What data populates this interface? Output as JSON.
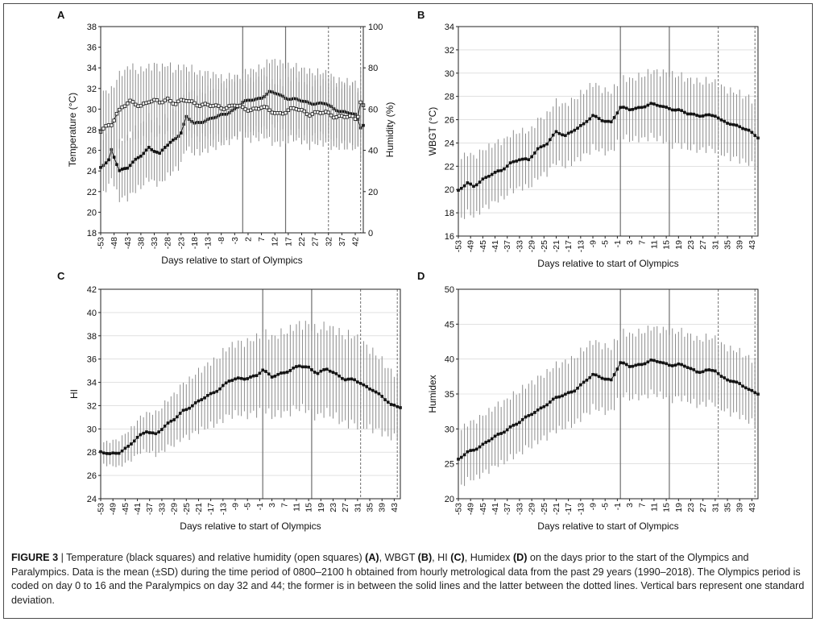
{
  "caption": {
    "label": "FIGURE 3",
    "separator": " | ",
    "p1": "Temperature (black squares) and relative humidity (open squares) ",
    "a": "(A)",
    "p2": ", WBGT ",
    "b": "(B)",
    "p3": ", HI ",
    "c": "(C)",
    "p4": ", Humidex ",
    "d": "(D)",
    "p5": " on the days prior to the start of the Olympics and Paralympics. Data is the mean (±SD) during the time period of 0800–2100 h obtained from hourly metrological data from the past 29 years (1990–2018). The Olympics period is coded on day 0 to 16 and the Paralympics on day 32 and 44; the former is in between the solid lines and the latter between the dotted lines. Vertical bars represent one standard deviation."
  },
  "chart_data": [
    {
      "panel": "A",
      "type": "line",
      "xlabel": "Days relative to start of Olympics",
      "ylabel": "Temperature (°C)",
      "y2label": "Humidity (%)",
      "xlim": [
        -53,
        45
      ],
      "ylim": [
        18,
        38
      ],
      "y2lim": [
        0,
        100
      ],
      "x_ticks": [
        -53,
        -48,
        -43,
        -38,
        -33,
        -28,
        -23,
        -18,
        -13,
        -8,
        -3,
        2,
        7,
        12,
        17,
        22,
        27,
        32,
        37,
        42
      ],
      "y_ticks": [
        18,
        20,
        22,
        24,
        26,
        28,
        30,
        32,
        34,
        36,
        38
      ],
      "y2_ticks": [
        0,
        20,
        40,
        60,
        80,
        100
      ],
      "reference_lines": {
        "solid": [
          0,
          16
        ],
        "dotted": [
          32,
          44
        ]
      },
      "grid": false,
      "series": [
        {
          "marker": "filled-square",
          "axis": "left",
          "anchors": [
            [
              -53,
              24.3
            ],
            [
              -50,
              25.0
            ],
            [
              -49,
              26.0
            ],
            [
              -46,
              24.1
            ],
            [
              -43,
              24.3
            ],
            [
              -38,
              25.5
            ],
            [
              -35,
              26.3
            ],
            [
              -31,
              25.6
            ],
            [
              -29,
              26.3
            ],
            [
              -26,
              27.0
            ],
            [
              -23,
              27.7
            ],
            [
              -21,
              29.2
            ],
            [
              -18,
              28.6
            ],
            [
              -14,
              28.9
            ],
            [
              -10,
              29.2
            ],
            [
              -6,
              29.6
            ],
            [
              -3,
              30.0
            ],
            [
              0,
              30.6
            ],
            [
              3,
              30.9
            ],
            [
              7,
              31.1
            ],
            [
              10,
              31.6
            ],
            [
              13,
              31.5
            ],
            [
              16,
              31.1
            ],
            [
              20,
              30.9
            ],
            [
              25,
              30.6
            ],
            [
              31,
              30.5
            ],
            [
              34,
              30.0
            ],
            [
              40,
              29.6
            ],
            [
              42,
              29.4
            ],
            [
              43,
              28.9
            ],
            [
              44,
              28.2
            ],
            [
              45,
              28.5
            ]
          ],
          "sd_anchors": [
            [
              -53,
              2.5
            ],
            [
              -40,
              3.0
            ],
            [
              -25,
              3.0
            ],
            [
              0,
              2.8
            ],
            [
              16,
              3.2
            ],
            [
              30,
              3.0
            ],
            [
              45,
              3.0
            ]
          ]
        },
        {
          "marker": "open-square",
          "axis": "right",
          "anchors": [
            [
              -53,
              49
            ],
            [
              -51,
              51
            ],
            [
              -49,
              53
            ],
            [
              -47,
              58
            ],
            [
              -45,
              61
            ],
            [
              -42,
              63
            ],
            [
              -38,
              62
            ],
            [
              -35,
              64
            ],
            [
              -31,
              63
            ],
            [
              -28,
              65
            ],
            [
              -25,
              63
            ],
            [
              -21,
              64
            ],
            [
              -18,
              63
            ],
            [
              -14,
              62
            ],
            [
              -10,
              61
            ],
            [
              -6,
              61
            ],
            [
              -3,
              62
            ],
            [
              0,
              60
            ],
            [
              3,
              60
            ],
            [
              7,
              61
            ],
            [
              10,
              59
            ],
            [
              13,
              58
            ],
            [
              16,
              59
            ],
            [
              20,
              60
            ],
            [
              25,
              58
            ],
            [
              31,
              58
            ],
            [
              34,
              57
            ],
            [
              40,
              56
            ],
            [
              42,
              55
            ],
            [
              43,
              57
            ],
            [
              44,
              64
            ],
            [
              45,
              62
            ]
          ],
          "sd_anchors": [
            [
              -53,
              17
            ],
            [
              -30,
              17
            ],
            [
              0,
              14
            ],
            [
              20,
              15
            ],
            [
              45,
              15
            ]
          ]
        }
      ]
    },
    {
      "panel": "B",
      "type": "line",
      "xlabel": "Days relative to start of Olympics",
      "ylabel": "WBGT (°C)",
      "xlim": [
        -53,
        45
      ],
      "ylim": [
        16,
        34
      ],
      "x_ticks": [
        -53,
        -49,
        -45,
        -41,
        -37,
        -33,
        -29,
        -25,
        -21,
        -17,
        -13,
        -9,
        -5,
        -1,
        3,
        7,
        11,
        15,
        19,
        23,
        27,
        31,
        35,
        39,
        43
      ],
      "y_ticks": [
        16,
        18,
        20,
        22,
        24,
        26,
        28,
        30,
        32,
        34
      ],
      "reference_lines": {
        "solid": [
          0,
          16
        ],
        "dotted": [
          32,
          44
        ]
      },
      "grid": true,
      "series": [
        {
          "marker": "filled-square",
          "anchors": [
            [
              -53,
              19.9
            ],
            [
              -50,
              20.5
            ],
            [
              -48,
              20.3
            ],
            [
              -45,
              20.9
            ],
            [
              -42,
              21.3
            ],
            [
              -39,
              21.6
            ],
            [
              -36,
              22.3
            ],
            [
              -33,
              22.6
            ],
            [
              -30,
              22.5
            ],
            [
              -27,
              23.5
            ],
            [
              -24,
              24.0
            ],
            [
              -21,
              24.9
            ],
            [
              -18,
              24.6
            ],
            [
              -15,
              25.2
            ],
            [
              -12,
              25.6
            ],
            [
              -9,
              26.3
            ],
            [
              -6,
              26.0
            ],
            [
              -3,
              25.8
            ],
            [
              0,
              27.0
            ],
            [
              3,
              26.9
            ],
            [
              7,
              27.1
            ],
            [
              10,
              27.3
            ],
            [
              13,
              27.2
            ],
            [
              16,
              27.0
            ],
            [
              19,
              26.8
            ],
            [
              22,
              26.5
            ],
            [
              25,
              26.4
            ],
            [
              28,
              26.4
            ],
            [
              31,
              26.3
            ],
            [
              33,
              25.9
            ],
            [
              36,
              25.7
            ],
            [
              39,
              25.4
            ],
            [
              42,
              25.0
            ],
            [
              45,
              24.5
            ]
          ],
          "sd_anchors": [
            [
              -53,
              2.6
            ],
            [
              -30,
              2.4
            ],
            [
              -10,
              2.8
            ],
            [
              0,
              2.5
            ],
            [
              16,
              3.0
            ],
            [
              45,
              2.8
            ]
          ]
        }
      ]
    },
    {
      "panel": "C",
      "type": "line",
      "xlabel": "Days relative to start of Olympics",
      "ylabel": "HI",
      "xlim": [
        -53,
        45
      ],
      "ylim": [
        24,
        42
      ],
      "x_ticks": [
        -53,
        -49,
        -45,
        -41,
        -37,
        -33,
        -29,
        -25,
        -21,
        -17,
        -13,
        -9,
        -5,
        -1,
        3,
        7,
        11,
        15,
        19,
        23,
        27,
        31,
        35,
        39,
        43
      ],
      "y_ticks": [
        24,
        26,
        28,
        30,
        32,
        34,
        36,
        38,
        40,
        42
      ],
      "reference_lines": {
        "solid": [
          0,
          16
        ],
        "dotted": [
          32,
          44
        ]
      },
      "grid": true,
      "series": [
        {
          "marker": "filled-square",
          "anchors": [
            [
              -53,
              28.0
            ],
            [
              -50,
              27.8
            ],
            [
              -47,
              28.0
            ],
            [
              -44,
              28.5
            ],
            [
              -41,
              29.2
            ],
            [
              -38,
              29.8
            ],
            [
              -35,
              29.6
            ],
            [
              -32,
              30.2
            ],
            [
              -29,
              30.8
            ],
            [
              -26,
              31.6
            ],
            [
              -23,
              32.0
            ],
            [
              -20,
              32.5
            ],
            [
              -17,
              33.0
            ],
            [
              -14,
              33.5
            ],
            [
              -11,
              34.1
            ],
            [
              -8,
              34.3
            ],
            [
              -5,
              34.4
            ],
            [
              -2,
              34.6
            ],
            [
              0,
              35.0
            ],
            [
              3,
              34.5
            ],
            [
              6,
              34.8
            ],
            [
              9,
              35.0
            ],
            [
              12,
              35.4
            ],
            [
              15,
              35.3
            ],
            [
              18,
              34.8
            ],
            [
              21,
              35.1
            ],
            [
              24,
              34.7
            ],
            [
              27,
              34.3
            ],
            [
              30,
              34.2
            ],
            [
              33,
              33.7
            ],
            [
              36,
              33.4
            ],
            [
              39,
              32.8
            ],
            [
              42,
              32.0
            ],
            [
              45,
              31.9
            ]
          ],
          "sd_anchors": [
            [
              -53,
              0.9
            ],
            [
              -40,
              1.5
            ],
            [
              -25,
              2.4
            ],
            [
              -10,
              3.0
            ],
            [
              0,
              3.3
            ],
            [
              16,
              3.7
            ],
            [
              30,
              3.8
            ],
            [
              45,
              2.6
            ]
          ]
        }
      ]
    },
    {
      "panel": "D",
      "type": "line",
      "xlabel": "Days relative to start of Olympics",
      "ylabel": "Humidex",
      "xlim": [
        -53,
        45
      ],
      "ylim": [
        20,
        50
      ],
      "x_ticks": [
        -53,
        -49,
        -45,
        -41,
        -37,
        -33,
        -29,
        -25,
        -21,
        -17,
        -13,
        -9,
        -5,
        -1,
        3,
        7,
        11,
        15,
        19,
        23,
        27,
        31,
        35,
        39,
        43
      ],
      "y_ticks": [
        20,
        25,
        30,
        35,
        40,
        45,
        50
      ],
      "reference_lines": {
        "solid": [
          0,
          16
        ],
        "dotted": [
          32,
          44
        ]
      },
      "grid": true,
      "series": [
        {
          "marker": "filled-square",
          "anchors": [
            [
              -53,
              25.6
            ],
            [
              -50,
              26.6
            ],
            [
              -48,
              27.0
            ],
            [
              -45,
              27.8
            ],
            [
              -42,
              28.6
            ],
            [
              -39,
              29.3
            ],
            [
              -36,
              30.3
            ],
            [
              -33,
              31.0
            ],
            [
              -30,
              31.8
            ],
            [
              -27,
              32.7
            ],
            [
              -24,
              33.6
            ],
            [
              -21,
              34.4
            ],
            [
              -18,
              34.9
            ],
            [
              -15,
              35.6
            ],
            [
              -12,
              36.6
            ],
            [
              -9,
              37.7
            ],
            [
              -6,
              37.4
            ],
            [
              -3,
              37.0
            ],
            [
              0,
              39.4
            ],
            [
              3,
              39.0
            ],
            [
              7,
              39.3
            ],
            [
              10,
              39.7
            ],
            [
              13,
              39.6
            ],
            [
              16,
              39.2
            ],
            [
              19,
              39.2
            ],
            [
              22,
              38.8
            ],
            [
              25,
              38.2
            ],
            [
              28,
              38.4
            ],
            [
              31,
              38.3
            ],
            [
              33,
              37.4
            ],
            [
              36,
              37.0
            ],
            [
              39,
              36.5
            ],
            [
              42,
              35.5
            ],
            [
              45,
              35.1
            ]
          ],
          "sd_anchors": [
            [
              -53,
              4.0
            ],
            [
              -30,
              4.5
            ],
            [
              -10,
              4.8
            ],
            [
              0,
              4.5
            ],
            [
              16,
              4.8
            ],
            [
              45,
              4.5
            ]
          ]
        }
      ]
    }
  ]
}
